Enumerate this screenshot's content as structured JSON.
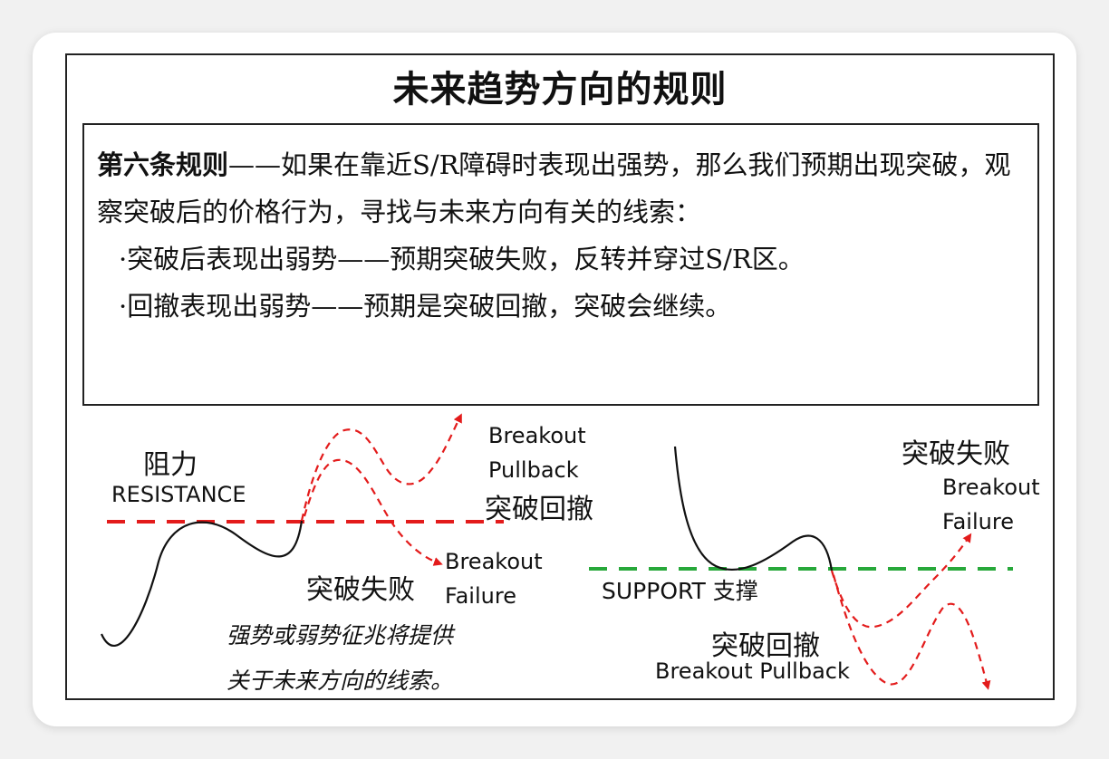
{
  "title": "未来趋势方向的规则",
  "rule": {
    "lead": "第六条规则",
    "text": "——如果在靠近S/R障碍时表现出强势，那么我们预期出现突破，观察突破后的价格行为，寻找与未来方向有关的线索：",
    "bullets": [
      "·突破后表现出弱势——预期突破失败，反转并穿过S/R区。",
      "·回撤表现出弱势——预期是突破回撤，突破会继续。"
    ]
  },
  "left_diagram": {
    "resistance_cn": "阻力",
    "resistance_en": "RESISTANCE",
    "pullback_en_1": "Breakout",
    "pullback_en_2": "Pullback",
    "pullback_cn": "突破回撤",
    "failure_cn": "突破失败",
    "failure_en_1": "Breakout",
    "failure_en_2": "Failure",
    "note_1": "强势或弱势征兆将提供",
    "note_2": "关于未来方向的线索。"
  },
  "right_diagram": {
    "failure_cn": "突破失败",
    "failure_en_1": "Breakout",
    "failure_en_2": "Failure",
    "support_label": "SUPPORT 支撑",
    "pullback_cn": "突破回撤",
    "pullback_en": "Breakout Pullback"
  },
  "colors": {
    "resistance_line": "#e31b1b",
    "support_line": "#27a83a",
    "dashed_path": "#e31b1b",
    "price_line": "#111111"
  }
}
